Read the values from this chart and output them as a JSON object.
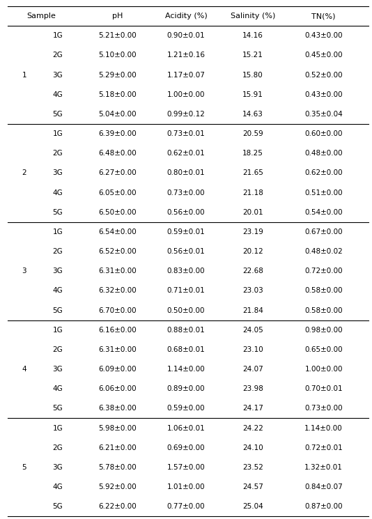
{
  "col_headers": [
    "Sample",
    "",
    "pH",
    "Acidity (%)",
    "Salinity (%)",
    "TN(%)"
  ],
  "groups": [
    {
      "group": "1",
      "rows": [
        {
          "sample": "1G",
          "ph": "5.21±0.00",
          "acidity": "0.90±0.01",
          "salinity": "14.16",
          "tn": "0.43±0.00"
        },
        {
          "sample": "2G",
          "ph": "5.10±0.00",
          "acidity": "1.21±0.16",
          "salinity": "15.21",
          "tn": "0.45±0.00"
        },
        {
          "sample": "3G",
          "ph": "5.29±0.00",
          "acidity": "1.17±0.07",
          "salinity": "15.80",
          "tn": "0.52±0.00"
        },
        {
          "sample": "4G",
          "ph": "5.18±0.00",
          "acidity": "1.00±0.00",
          "salinity": "15.91",
          "tn": "0.43±0.00"
        },
        {
          "sample": "5G",
          "ph": "5.04±0.00",
          "acidity": "0.99±0.12",
          "salinity": "14.63",
          "tn": "0.35±0.04"
        }
      ]
    },
    {
      "group": "2",
      "rows": [
        {
          "sample": "1G",
          "ph": "6.39±0.00",
          "acidity": "0.73±0.01",
          "salinity": "20.59",
          "tn": "0.60±0.00"
        },
        {
          "sample": "2G",
          "ph": "6.48±0.00",
          "acidity": "0.62±0.01",
          "salinity": "18.25",
          "tn": "0.48±0.00"
        },
        {
          "sample": "3G",
          "ph": "6.27±0.00",
          "acidity": "0.80±0.01",
          "salinity": "21.65",
          "tn": "0.62±0.00"
        },
        {
          "sample": "4G",
          "ph": "6.05±0.00",
          "acidity": "0.73±0.00",
          "salinity": "21.18",
          "tn": "0.51±0.00"
        },
        {
          "sample": "5G",
          "ph": "6.50±0.00",
          "acidity": "0.56±0.00",
          "salinity": "20.01",
          "tn": "0.54±0.00"
        }
      ]
    },
    {
      "group": "3",
      "rows": [
        {
          "sample": "1G",
          "ph": "6.54±0.00",
          "acidity": "0.59±0.01",
          "salinity": "23.19",
          "tn": "0.67±0.00"
        },
        {
          "sample": "2G",
          "ph": "6.52±0.00",
          "acidity": "0.56±0.01",
          "salinity": "20.12",
          "tn": "0.48±0.02"
        },
        {
          "sample": "3G",
          "ph": "6.31±0.00",
          "acidity": "0.83±0.00",
          "salinity": "22.68",
          "tn": "0.72±0.00"
        },
        {
          "sample": "4G",
          "ph": "6.32±0.00",
          "acidity": "0.71±0.01",
          "salinity": "23.03",
          "tn": "0.58±0.00"
        },
        {
          "sample": "5G",
          "ph": "6.70±0.00",
          "acidity": "0.50±0.00",
          "salinity": "21.84",
          "tn": "0.58±0.00"
        }
      ]
    },
    {
      "group": "4",
      "rows": [
        {
          "sample": "1G",
          "ph": "6.16±0.00",
          "acidity": "0.88±0.01",
          "salinity": "24.05",
          "tn": "0.98±0.00"
        },
        {
          "sample": "2G",
          "ph": "6.31±0.00",
          "acidity": "0.68±0.01",
          "salinity": "23.10",
          "tn": "0.65±0.00"
        },
        {
          "sample": "3G",
          "ph": "6.09±0.00",
          "acidity": "1.14±0.00",
          "salinity": "24.07",
          "tn": "1.00±0.00"
        },
        {
          "sample": "4G",
          "ph": "6.06±0.00",
          "acidity": "0.89±0.00",
          "salinity": "23.98",
          "tn": "0.70±0.01"
        },
        {
          "sample": "5G",
          "ph": "6.38±0.00",
          "acidity": "0.59±0.00",
          "salinity": "24.17",
          "tn": "0.73±0.00"
        }
      ]
    },
    {
      "group": "5",
      "rows": [
        {
          "sample": "1G",
          "ph": "5.98±0.00",
          "acidity": "1.06±0.01",
          "salinity": "24.22",
          "tn": "1.14±0.00"
        },
        {
          "sample": "2G",
          "ph": "6.21±0.00",
          "acidity": "0.69±0.00",
          "salinity": "24.10",
          "tn": "0.72±0.01"
        },
        {
          "sample": "3G",
          "ph": "5.78±0.00",
          "acidity": "1.57±0.00",
          "salinity": "23.52",
          "tn": "1.32±0.01"
        },
        {
          "sample": "4G",
          "ph": "5.92±0.00",
          "acidity": "1.01±0.00",
          "salinity": "24.57",
          "tn": "0.84±0.07"
        },
        {
          "sample": "5G",
          "ph": "6.22±0.00",
          "acidity": "0.77±0.00",
          "salinity": "25.04",
          "tn": "0.87±0.00"
        }
      ]
    }
  ],
  "line_color": "#000000",
  "text_color": "#000000",
  "bg_color": "#ffffff",
  "font_size": 7.5,
  "header_font_size": 8.0,
  "fig_width": 5.34,
  "fig_height": 7.45,
  "dpi": 100
}
